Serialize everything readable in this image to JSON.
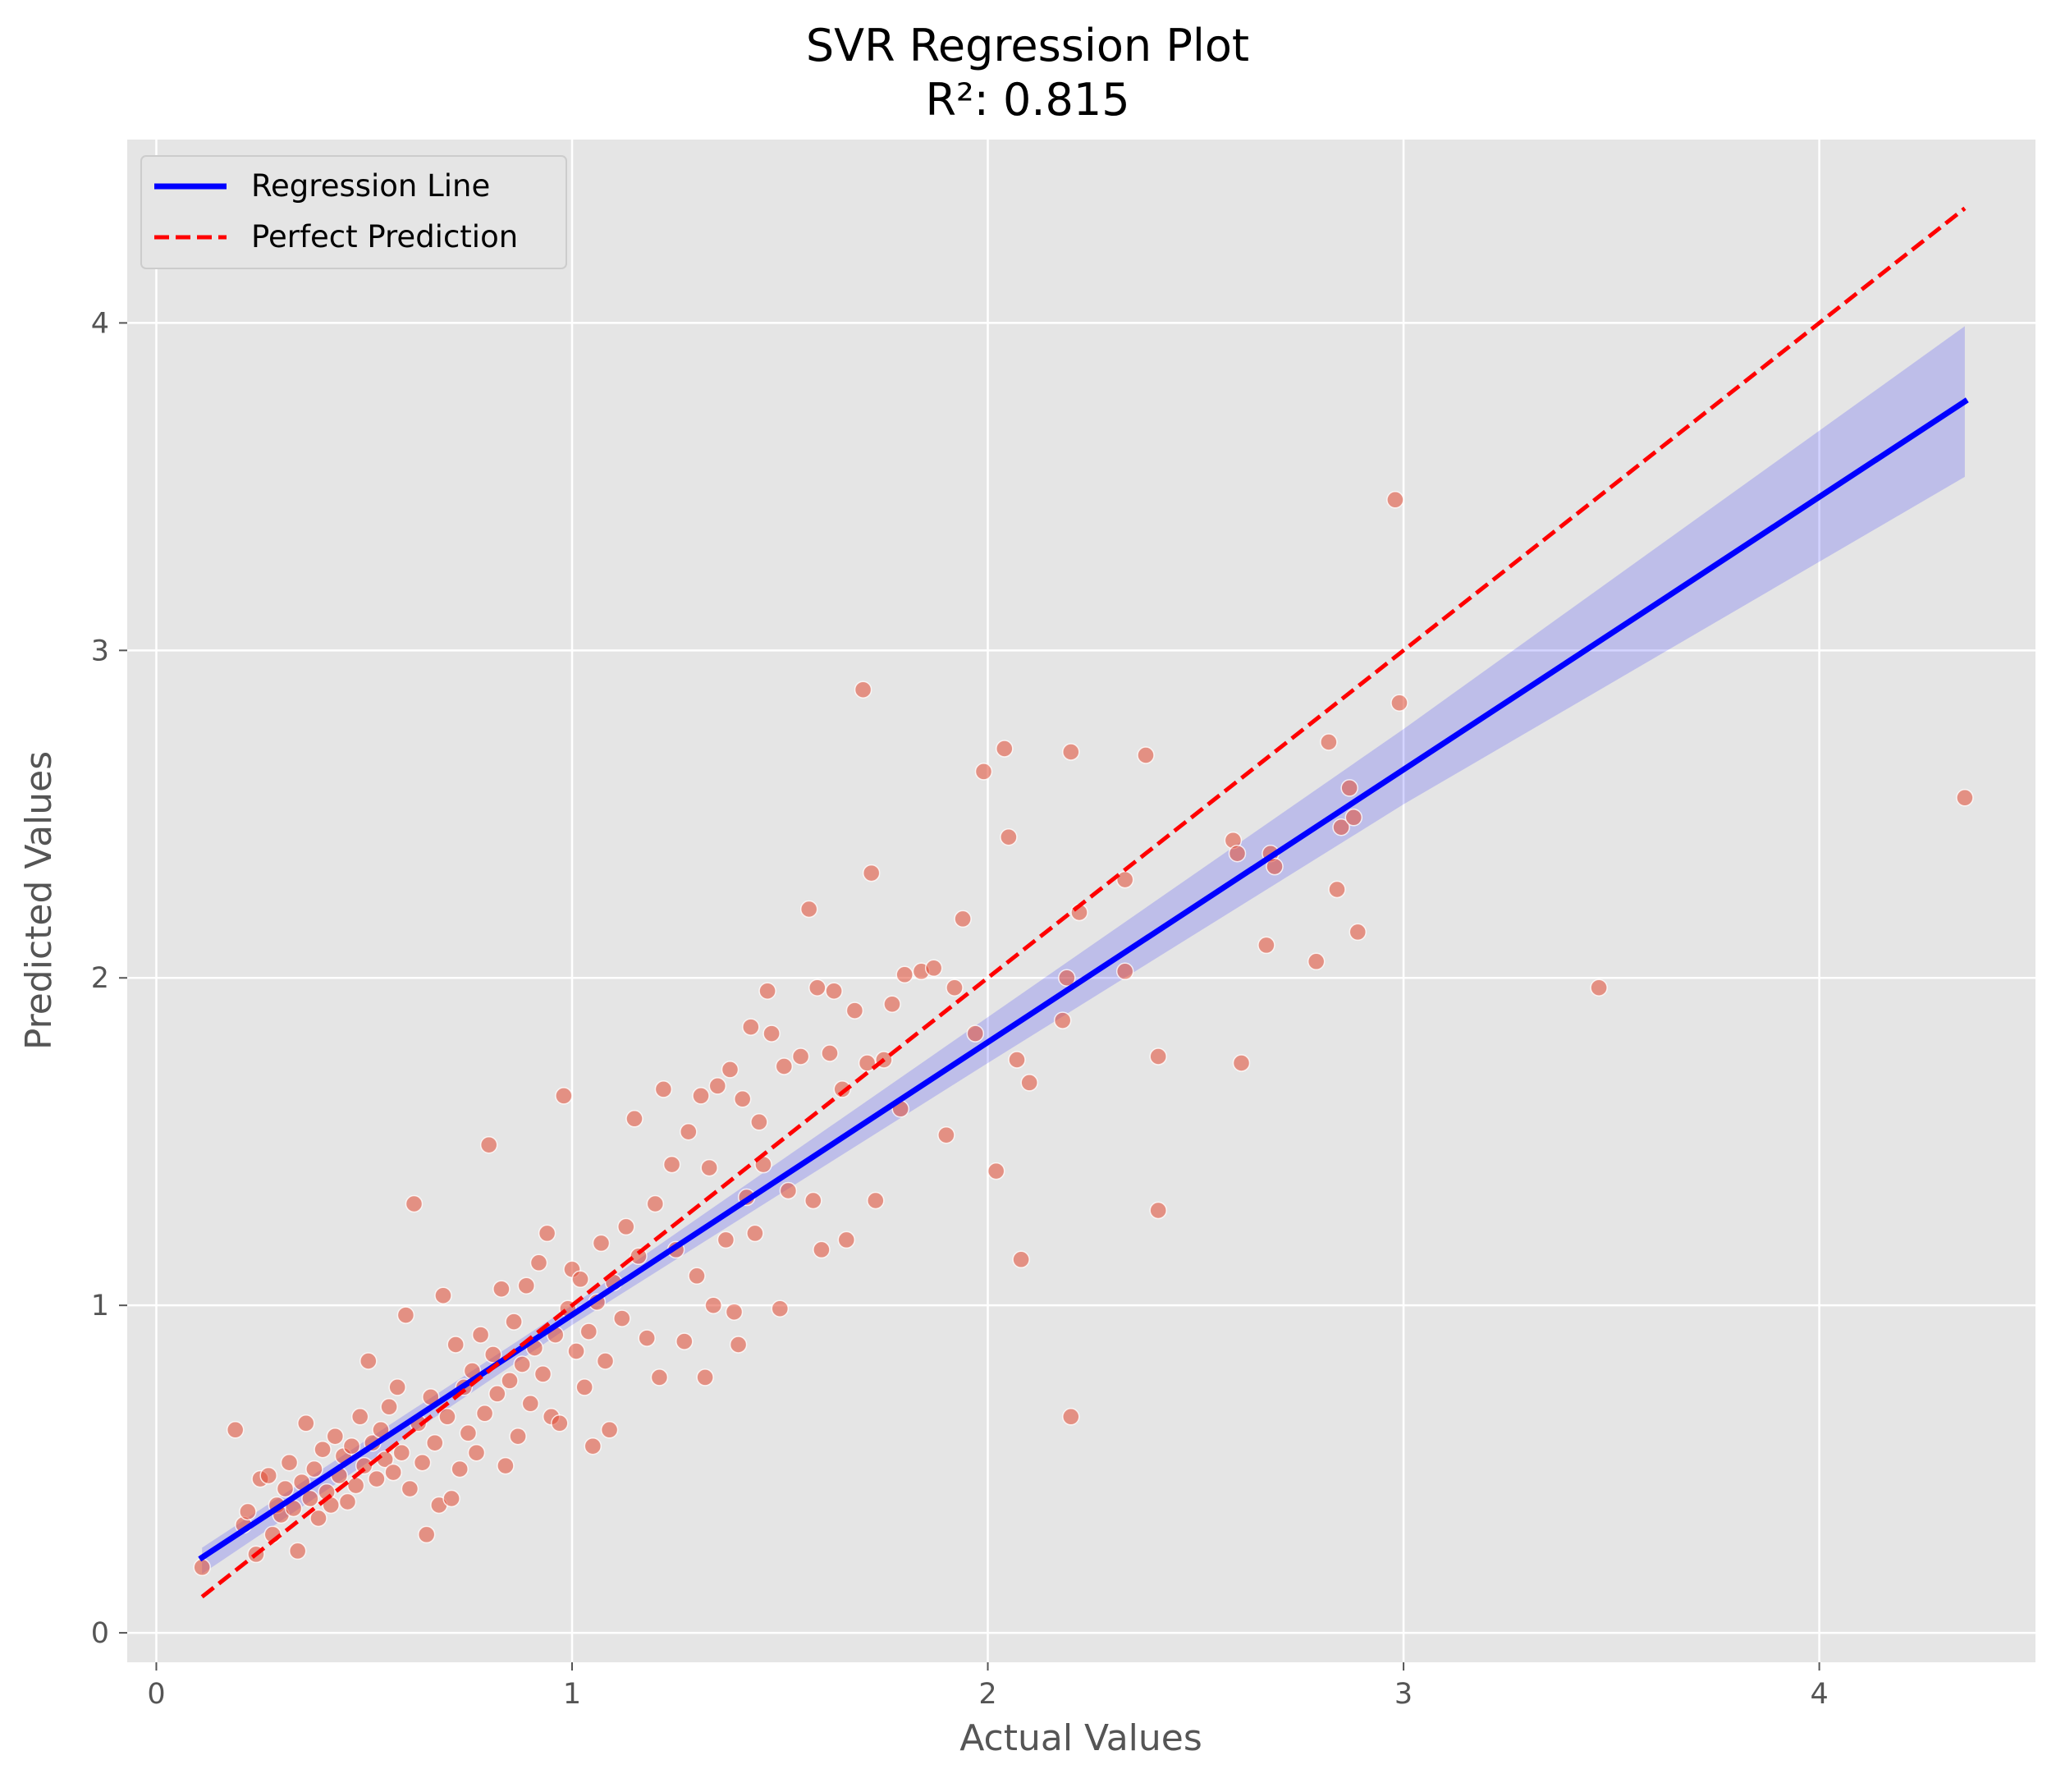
{
  "chart_data": {
    "type": "scatter",
    "title": "SVR Regression Plot",
    "subtitle": "R²: 0.815",
    "xlabel": "Actual Values",
    "ylabel": "Predicted Values",
    "xlim": [
      -0.07,
      4.52
    ],
    "ylim": [
      -0.09,
      4.56
    ],
    "xticks": [
      0,
      1,
      2,
      3,
      4
    ],
    "yticks": [
      0,
      1,
      2,
      3,
      4
    ],
    "grid": true,
    "legend_position": "top-left",
    "colors": {
      "background": "#e5e5e5",
      "grid": "#ffffff",
      "points": "#e24a33",
      "regression_line": "#0000ff",
      "confidence_band": "#0000ff",
      "perfect_line": "#ff0000"
    },
    "series": [
      {
        "name": "Regression Line",
        "style": "solid",
        "x": [
          0.11,
          4.35
        ],
        "y": [
          0.23,
          3.76
        ]
      },
      {
        "name": "Perfect Prediction",
        "style": "dashed",
        "x": [
          0.11,
          4.35
        ],
        "y": [
          0.11,
          4.35
        ]
      }
    ],
    "confidence_band": {
      "x": [
        0.11,
        1.0,
        2.0,
        3.0,
        4.35
      ],
      "upper": [
        0.26,
        1.0,
        1.88,
        2.76,
        3.99
      ],
      "lower": [
        0.18,
        0.94,
        1.74,
        2.53,
        3.53
      ]
    },
    "points": [
      [
        0.11,
        0.2
      ],
      [
        0.19,
        0.62
      ],
      [
        0.21,
        0.33
      ],
      [
        0.22,
        0.37
      ],
      [
        0.24,
        0.24
      ],
      [
        0.25,
        0.47
      ],
      [
        0.27,
        0.48
      ],
      [
        0.28,
        0.3
      ],
      [
        0.29,
        0.39
      ],
      [
        0.3,
        0.36
      ],
      [
        0.31,
        0.44
      ],
      [
        0.32,
        0.52
      ],
      [
        0.33,
        0.38
      ],
      [
        0.34,
        0.25
      ],
      [
        0.35,
        0.46
      ],
      [
        0.36,
        0.64
      ],
      [
        0.37,
        0.41
      ],
      [
        0.38,
        0.5
      ],
      [
        0.39,
        0.35
      ],
      [
        0.4,
        0.56
      ],
      [
        0.41,
        0.43
      ],
      [
        0.42,
        0.39
      ],
      [
        0.43,
        0.6
      ],
      [
        0.44,
        0.48
      ],
      [
        0.45,
        0.54
      ],
      [
        0.46,
        0.4
      ],
      [
        0.47,
        0.57
      ],
      [
        0.48,
        0.45
      ],
      [
        0.49,
        0.66
      ],
      [
        0.5,
        0.51
      ],
      [
        0.51,
        0.83
      ],
      [
        0.52,
        0.58
      ],
      [
        0.53,
        0.47
      ],
      [
        0.54,
        0.62
      ],
      [
        0.55,
        0.53
      ],
      [
        0.56,
        0.69
      ],
      [
        0.57,
        0.49
      ],
      [
        0.58,
        0.75
      ],
      [
        0.59,
        0.55
      ],
      [
        0.6,
        0.97
      ],
      [
        0.61,
        0.44
      ],
      [
        0.62,
        1.31
      ],
      [
        0.63,
        0.64
      ],
      [
        0.64,
        0.52
      ],
      [
        0.65,
        0.3
      ],
      [
        0.66,
        0.72
      ],
      [
        0.67,
        0.58
      ],
      [
        0.68,
        0.39
      ],
      [
        0.69,
        1.03
      ],
      [
        0.7,
        0.66
      ],
      [
        0.71,
        0.41
      ],
      [
        0.72,
        0.88
      ],
      [
        0.73,
        0.5
      ],
      [
        0.74,
        0.75
      ],
      [
        0.75,
        0.61
      ],
      [
        0.76,
        0.8
      ],
      [
        0.77,
        0.55
      ],
      [
        0.78,
        0.91
      ],
      [
        0.79,
        0.67
      ],
      [
        0.8,
        1.49
      ],
      [
        0.81,
        0.85
      ],
      [
        0.82,
        0.73
      ],
      [
        0.83,
        1.05
      ],
      [
        0.84,
        0.51
      ],
      [
        0.85,
        0.77
      ],
      [
        0.86,
        0.95
      ],
      [
        0.87,
        0.6
      ],
      [
        0.88,
        0.82
      ],
      [
        0.89,
        1.06
      ],
      [
        0.9,
        0.7
      ],
      [
        0.91,
        0.87
      ],
      [
        0.92,
        1.13
      ],
      [
        0.93,
        0.79
      ],
      [
        0.94,
        1.22
      ],
      [
        0.95,
        0.66
      ],
      [
        0.96,
        0.91
      ],
      [
        0.97,
        0.64
      ],
      [
        0.98,
        1.64
      ],
      [
        0.99,
        0.99
      ],
      [
        1.0,
        1.11
      ],
      [
        1.01,
        0.86
      ],
      [
        1.02,
        1.08
      ],
      [
        1.03,
        0.75
      ],
      [
        1.04,
        0.92
      ],
      [
        1.05,
        0.57
      ],
      [
        1.06,
        1.01
      ],
      [
        1.07,
        1.19
      ],
      [
        1.08,
        0.83
      ],
      [
        1.09,
        0.62
      ],
      [
        1.1,
        1.07
      ],
      [
        1.12,
        0.96
      ],
      [
        1.13,
        1.24
      ],
      [
        1.15,
        1.57
      ],
      [
        1.16,
        1.15
      ],
      [
        1.18,
        0.9
      ],
      [
        1.2,
        1.31
      ],
      [
        1.21,
        0.78
      ],
      [
        1.22,
        1.66
      ],
      [
        1.24,
        1.43
      ],
      [
        1.25,
        1.17
      ],
      [
        1.27,
        0.89
      ],
      [
        1.28,
        1.53
      ],
      [
        1.3,
        1.09
      ],
      [
        1.31,
        1.64
      ],
      [
        1.32,
        0.78
      ],
      [
        1.33,
        1.42
      ],
      [
        1.34,
        1.0
      ],
      [
        1.35,
        1.67
      ],
      [
        1.37,
        1.2
      ],
      [
        1.38,
        1.72
      ],
      [
        1.39,
        0.98
      ],
      [
        1.4,
        0.88
      ],
      [
        1.41,
        1.63
      ],
      [
        1.42,
        1.33
      ],
      [
        1.43,
        1.85
      ],
      [
        1.44,
        1.22
      ],
      [
        1.45,
        1.56
      ],
      [
        1.46,
        1.43
      ],
      [
        1.47,
        1.96
      ],
      [
        1.48,
        1.83
      ],
      [
        1.5,
        0.99
      ],
      [
        1.51,
        1.73
      ],
      [
        1.52,
        1.35
      ],
      [
        1.55,
        1.76
      ],
      [
        1.57,
        2.21
      ],
      [
        1.58,
        1.32
      ],
      [
        1.59,
        1.97
      ],
      [
        1.6,
        1.17
      ],
      [
        1.62,
        1.77
      ],
      [
        1.63,
        1.96
      ],
      [
        1.65,
        1.66
      ],
      [
        1.66,
        1.2
      ],
      [
        1.68,
        1.9
      ],
      [
        1.7,
        2.88
      ],
      [
        1.71,
        1.74
      ],
      [
        1.72,
        2.32
      ],
      [
        1.73,
        1.32
      ],
      [
        1.75,
        1.75
      ],
      [
        1.77,
        1.92
      ],
      [
        1.79,
        1.6
      ],
      [
        1.8,
        2.01
      ],
      [
        1.84,
        2.02
      ],
      [
        1.87,
        2.03
      ],
      [
        1.9,
        1.52
      ],
      [
        1.92,
        1.97
      ],
      [
        1.94,
        2.18
      ],
      [
        1.97,
        1.83
      ],
      [
        1.99,
        2.63
      ],
      [
        2.02,
        1.41
      ],
      [
        2.04,
        2.7
      ],
      [
        2.05,
        2.43
      ],
      [
        2.07,
        1.75
      ],
      [
        2.08,
        1.14
      ],
      [
        2.1,
        1.68
      ],
      [
        2.18,
        1.87
      ],
      [
        2.19,
        2.0
      ],
      [
        2.2,
        2.69
      ],
      [
        2.2,
        0.66
      ],
      [
        2.22,
        2.2
      ],
      [
        2.33,
        2.3
      ],
      [
        2.33,
        2.02
      ],
      [
        2.38,
        2.68
      ],
      [
        2.41,
        1.76
      ],
      [
        2.41,
        1.29
      ],
      [
        2.59,
        2.42
      ],
      [
        2.6,
        2.38
      ],
      [
        2.61,
        1.74
      ],
      [
        2.67,
        2.1
      ],
      [
        2.68,
        2.38
      ],
      [
        2.69,
        2.34
      ],
      [
        2.79,
        2.05
      ],
      [
        2.82,
        2.72
      ],
      [
        2.84,
        2.27
      ],
      [
        2.85,
        2.46
      ],
      [
        2.87,
        2.58
      ],
      [
        2.88,
        2.49
      ],
      [
        2.89,
        2.14
      ],
      [
        2.98,
        3.46
      ],
      [
        2.99,
        2.84
      ],
      [
        3.47,
        1.97
      ],
      [
        4.35,
        2.55
      ]
    ]
  }
}
